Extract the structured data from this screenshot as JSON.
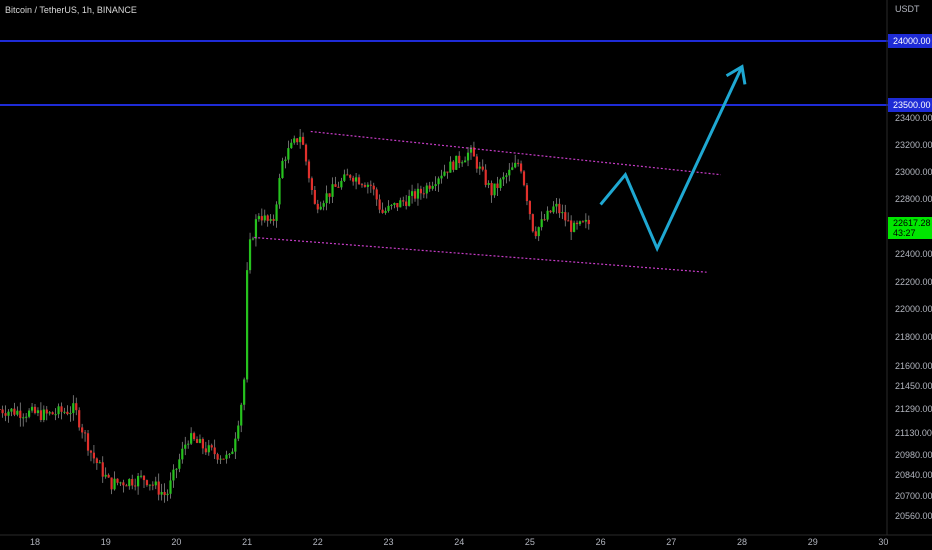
{
  "header": {
    "title": "Bitcoin / TetherUS, 1h, BINANCE",
    "currency": "USDT"
  },
  "colors": {
    "background": "#000000",
    "up_candle": "#26c21e",
    "down_candle": "#e0302c",
    "level_line": "#1e2bd6",
    "channel_line": "#c83cc8",
    "forecast_arrow": "#1fa8d2",
    "price_tag": "#00e600"
  },
  "chart_data": {
    "type": "candlestick",
    "symbol": "Bitcoin / TetherUS, 1h, BINANCE",
    "x_ticks": [
      "18",
      "19",
      "20",
      "21",
      "22",
      "23",
      "24",
      "25",
      "26",
      "27",
      "28",
      "29",
      "30"
    ],
    "y_ticks": [
      "23400.00",
      "23200.00",
      "23000.00",
      "22800.00",
      "22400.00",
      "22200.00",
      "22000.00",
      "21800.00",
      "21600.00",
      "21450.00",
      "21290.00",
      "21130.00",
      "20980.00",
      "20840.00",
      "20700.00",
      "20560.00"
    ],
    "horizontal_levels": [
      {
        "price": 24000,
        "label": "24000.00"
      },
      {
        "price": 23500,
        "label": "23500.00"
      }
    ],
    "last_price": {
      "label": "22617.28",
      "countdown": "43:27"
    },
    "channel": {
      "upper": [
        {
          "day": 21.9,
          "price": 23300
        },
        {
          "day": 27.7,
          "price": 22980
        }
      ],
      "lower": [
        {
          "day": 21.1,
          "price": 22520
        },
        {
          "day": 27.5,
          "price": 22270
        }
      ]
    },
    "forecast_path": [
      {
        "day": 26.0,
        "price": 22760
      },
      {
        "day": 26.35,
        "price": 22980
      },
      {
        "day": 26.8,
        "price": 22440
      },
      {
        "day": 28.0,
        "price": 23800
      }
    ],
    "anchor_prices": [
      {
        "day": 17.5,
        "price": 21290
      },
      {
        "day": 18.2,
        "price": 21250
      },
      {
        "day": 18.6,
        "price": 21290
      },
      {
        "day": 18.7,
        "price": 21170
      },
      {
        "day": 18.85,
        "price": 20980
      },
      {
        "day": 19.1,
        "price": 20780
      },
      {
        "day": 19.6,
        "price": 20820
      },
      {
        "day": 19.9,
        "price": 20700
      },
      {
        "day": 20.2,
        "price": 21100
      },
      {
        "day": 20.5,
        "price": 21010
      },
      {
        "day": 20.8,
        "price": 20950
      },
      {
        "day": 20.95,
        "price": 21300
      },
      {
        "day": 21.0,
        "price": 21500
      },
      {
        "day": 21.05,
        "price": 22400
      },
      {
        "day": 21.2,
        "price": 22700
      },
      {
        "day": 21.4,
        "price": 22600
      },
      {
        "day": 21.55,
        "price": 23100
      },
      {
        "day": 21.8,
        "price": 23280
      },
      {
        "day": 22.0,
        "price": 22750
      },
      {
        "day": 22.5,
        "price": 22980
      },
      {
        "day": 22.8,
        "price": 22900
      },
      {
        "day": 22.95,
        "price": 22700
      },
      {
        "day": 23.5,
        "price": 22850
      },
      {
        "day": 23.8,
        "price": 23000
      },
      {
        "day": 24.2,
        "price": 23150
      },
      {
        "day": 24.5,
        "price": 22850
      },
      {
        "day": 24.9,
        "price": 23080
      },
      {
        "day": 25.1,
        "price": 22550
      },
      {
        "day": 25.4,
        "price": 22750
      },
      {
        "day": 25.65,
        "price": 22580
      },
      {
        "day": 25.85,
        "price": 22620
      }
    ]
  }
}
